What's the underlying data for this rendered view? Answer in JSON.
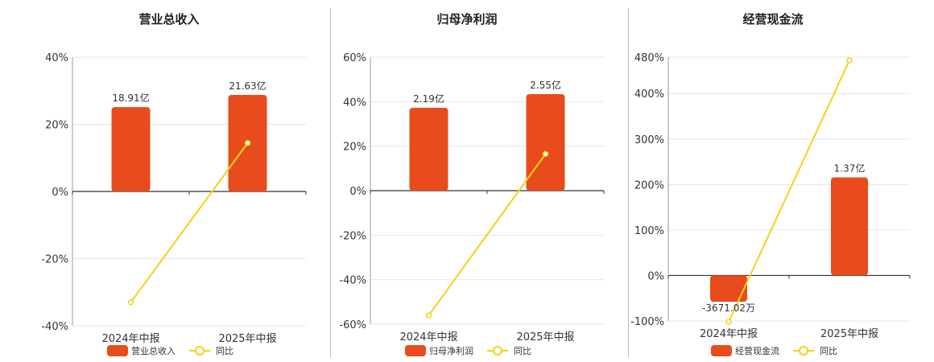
{
  "colors": {
    "bar": "#e84c1c",
    "line": "#f5d218",
    "axis": "#333333",
    "grid": "#e6e6e6",
    "divider": "#bbbbbb"
  },
  "chart_data": [
    {
      "type": "bar",
      "title": "营业总收入",
      "categories": [
        "2024年中报",
        "2025年中报"
      ],
      "bar_series": {
        "name": "营业总收入",
        "values": [
          18.91,
          21.63
        ],
        "labels": [
          "18.91亿",
          "21.63亿"
        ],
        "unit": "亿"
      },
      "line_series": {
        "name": "同比",
        "values": [
          -33,
          14.4
        ],
        "unit": "%"
      },
      "ylim": [
        -40,
        40
      ],
      "yticks": [
        40,
        20,
        0,
        -20,
        -40
      ],
      "ytick_labels": [
        "40%",
        "20%",
        "0%",
        "-20%",
        "-40%"
      ],
      "grid": true,
      "legend": "bottom-center"
    },
    {
      "type": "bar",
      "title": "归母净利润",
      "categories": [
        "2024年中报",
        "2025年中报"
      ],
      "bar_series": {
        "name": "归母净利润",
        "values": [
          2.19,
          2.55
        ],
        "labels": [
          "2.19亿",
          "2.55亿"
        ],
        "unit": "亿"
      },
      "line_series": {
        "name": "同比",
        "values": [
          -56,
          16.5
        ],
        "unit": "%"
      },
      "ylim": [
        -60,
        60
      ],
      "yticks": [
        60,
        40,
        20,
        0,
        -20,
        -40,
        -60
      ],
      "ytick_labels": [
        "60%",
        "40%",
        "20%",
        "0%",
        "-20%",
        "-40%",
        "-60%"
      ],
      "grid": true,
      "legend": "bottom-center"
    },
    {
      "type": "bar",
      "title": "经营现金流",
      "categories": [
        "2024年中报",
        "2025年中报"
      ],
      "bar_series": {
        "name": "经营现金流",
        "values": [
          -0.367102,
          1.37
        ],
        "labels": [
          "-3671.02万",
          "1.37亿"
        ],
        "unit": "亿"
      },
      "line_series": {
        "name": "同比",
        "values": [
          -102,
          473
        ],
        "unit": "%"
      },
      "ylim": [
        -100,
        480
      ],
      "yticks": [
        480,
        400,
        300,
        200,
        100,
        0,
        -100
      ],
      "ytick_labels": [
        "480%",
        "400%",
        "300%",
        "200%",
        "100%",
        "0%",
        "-100%"
      ],
      "grid": true,
      "legend": "bottom-center"
    }
  ]
}
